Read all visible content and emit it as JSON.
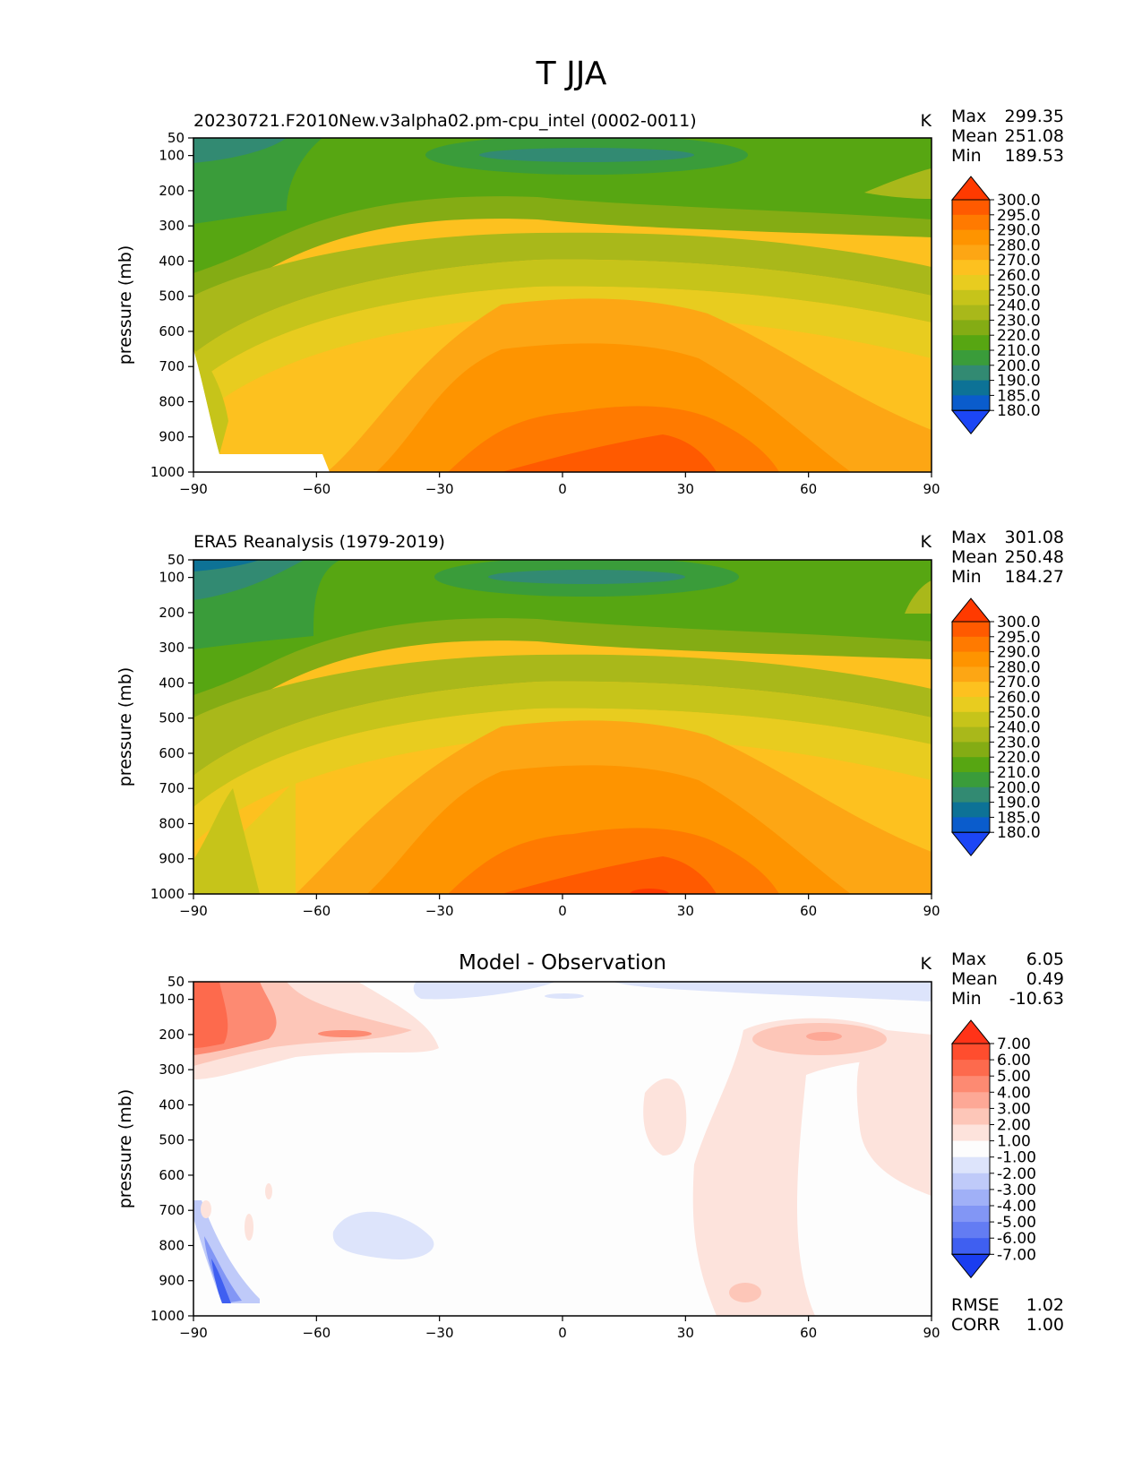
{
  "title": "T JJA",
  "ylabel": "pressure (mb)",
  "unit": "K",
  "x_ticks": [
    "−90",
    "−60",
    "−30",
    "0",
    "30",
    "60",
    "90"
  ],
  "y_ticks": [
    "50",
    "100",
    "200",
    "300",
    "400",
    "500",
    "600",
    "700",
    "800",
    "900",
    "1000"
  ],
  "stat_labels": {
    "max": "Max",
    "mean": "Mean",
    "min": "Min",
    "rmse": "RMSE",
    "corr": "CORR"
  },
  "panels": [
    {
      "id": "test",
      "label": "20230721.F2010New.v3alpha02.pm-cpu_intel (0002-0011)",
      "label_align": "left",
      "stats": {
        "max": "299.35",
        "mean": "251.08",
        "min": "189.53"
      }
    },
    {
      "id": "ref",
      "label": "ERA5 Reanalysis (1979-2019)",
      "label_align": "left",
      "stats": {
        "max": "301.08",
        "mean": "250.48",
        "min": "184.27"
      }
    },
    {
      "id": "diff",
      "label": "Model - Observation",
      "label_align": "center",
      "stats": {
        "max": "6.05",
        "mean": "0.49",
        "min": "-10.63"
      },
      "rmse": "1.02",
      "corr": "1.00"
    }
  ],
  "colorbars": {
    "temperature": {
      "levels": [
        "300.0",
        "295.0",
        "290.0",
        "280.0",
        "270.0",
        "260.0",
        "250.0",
        "240.0",
        "230.0",
        "220.0",
        "210.0",
        "200.0",
        "190.0",
        "185.0",
        "180.0"
      ],
      "colors": [
        "#ff3a00",
        "#ff5a00",
        "#ff7a00",
        "#fe9400",
        "#fda614",
        "#fdc11f",
        "#e8cc1f",
        "#c6c41a",
        "#a9b81a",
        "#84ac14",
        "#57a612",
        "#3a9c3a",
        "#328a72",
        "#0d7296",
        "#0a5ccc",
        "#1c46f5"
      ]
    },
    "difference": {
      "levels": [
        "7.00",
        "6.00",
        "5.00",
        "4.00",
        "3.00",
        "2.00",
        "1.00",
        "-1.00",
        "-2.00",
        "-3.00",
        "-4.00",
        "-5.00",
        "-6.00",
        "-7.00"
      ],
      "colors": [
        "#ff3318",
        "#ff4d2e",
        "#fd6a4d",
        "#fd8a72",
        "#fda896",
        "#fdc6b8",
        "#fde3dc",
        "#fdfdfd",
        "#dde4fb",
        "#bfcaf9",
        "#a0b0f7",
        "#8296f5",
        "#637cf3",
        "#3f5ff1",
        "#1a3df0"
      ]
    }
  },
  "chart_data": [
    {
      "type": "heatmap",
      "panel": "test",
      "title": "20230721.F2010New.v3alpha02.pm-cpu_intel (0002-0011)",
      "xlabel": "",
      "ylabel": "pressure (mb)",
      "xlim": [
        -90,
        90
      ],
      "ylim": [
        1000,
        50
      ],
      "x": [
        -90,
        -60,
        -30,
        0,
        30,
        60,
        90
      ],
      "y": [
        1000,
        900,
        800,
        700,
        600,
        500,
        400,
        300,
        200,
        100,
        50
      ],
      "values": [
        [
          null,
          250,
          270,
          285,
          295,
          285,
          270
        ],
        [
          null,
          255,
          275,
          290,
          296,
          285,
          270
        ],
        [
          248,
          258,
          272,
          285,
          290,
          280,
          265
        ],
        [
          242,
          255,
          268,
          280,
          282,
          272,
          262
        ],
        [
          238,
          252,
          262,
          271,
          272,
          265,
          255
        ],
        [
          232,
          248,
          258,
          265,
          266,
          258,
          250
        ],
        [
          225,
          240,
          250,
          258,
          258,
          250,
          242
        ],
        [
          215,
          228,
          238,
          245,
          245,
          238,
          230
        ],
        [
          205,
          215,
          222,
          225,
          225,
          222,
          218
        ],
        [
          200,
          208,
          210,
          205,
          205,
          212,
          220
        ],
        [
          195,
          205,
          212,
          212,
          212,
          215,
          222
        ]
      ]
    },
    {
      "type": "heatmap",
      "panel": "ref",
      "title": "ERA5 Reanalysis (1979-2019)",
      "xlabel": "",
      "ylabel": "pressure (mb)",
      "xlim": [
        -90,
        90
      ],
      "ylim": [
        1000,
        50
      ],
      "x": [
        -90,
        -60,
        -30,
        0,
        30,
        60,
        90
      ],
      "y": [
        1000,
        900,
        800,
        700,
        600,
        500,
        400,
        300,
        200,
        100,
        50
      ],
      "values": [
        [
          250,
          262,
          275,
          288,
          298,
          286,
          270
        ],
        [
          245,
          260,
          275,
          290,
          296,
          285,
          270
        ],
        [
          240,
          256,
          272,
          285,
          290,
          280,
          265
        ],
        [
          236,
          252,
          268,
          280,
          282,
          272,
          262
        ],
        [
          232,
          250,
          262,
          271,
          272,
          265,
          255
        ],
        [
          228,
          245,
          258,
          265,
          266,
          258,
          250
        ],
        [
          222,
          238,
          250,
          258,
          258,
          250,
          242
        ],
        [
          212,
          226,
          238,
          245,
          245,
          238,
          230
        ],
        [
          202,
          213,
          222,
          225,
          225,
          222,
          218
        ],
        [
          195,
          205,
          210,
          205,
          205,
          212,
          220
        ],
        [
          188,
          203,
          212,
          212,
          212,
          215,
          222
        ]
      ]
    },
    {
      "type": "heatmap",
      "panel": "diff",
      "title": "Model - Observation",
      "xlabel": "",
      "ylabel": "pressure (mb)",
      "xlim": [
        -90,
        90
      ],
      "ylim": [
        1000,
        50
      ],
      "x": [
        -90,
        -60,
        -30,
        0,
        30,
        60,
        90
      ],
      "y": [
        1000,
        900,
        800,
        700,
        600,
        500,
        400,
        300,
        200,
        100,
        50
      ],
      "values": [
        [
          null,
          0,
          0,
          0,
          1.5,
          0,
          0
        ],
        [
          -7,
          0,
          0,
          0,
          1.5,
          0,
          0
        ],
        [
          -3,
          0,
          -1.5,
          0,
          1.5,
          0,
          0
        ],
        [
          -1.5,
          0,
          -1.5,
          0,
          1.5,
          0,
          0
        ],
        [
          0,
          0,
          0,
          0,
          1.5,
          0,
          1.5
        ],
        [
          0,
          0,
          0,
          1.2,
          1.2,
          1.2,
          1.5
        ],
        [
          0,
          0,
          0,
          1.2,
          1.2,
          1.2,
          1.5
        ],
        [
          1.5,
          1.2,
          0,
          0,
          1.2,
          2,
          1.2
        ],
        [
          5.5,
          3,
          2,
          0,
          1.2,
          3,
          1.2
        ],
        [
          5,
          3,
          1.5,
          0,
          0,
          0,
          -1.5
        ],
        [
          4,
          2,
          0,
          -1.2,
          0,
          -1.2,
          -1.5
        ]
      ]
    }
  ]
}
